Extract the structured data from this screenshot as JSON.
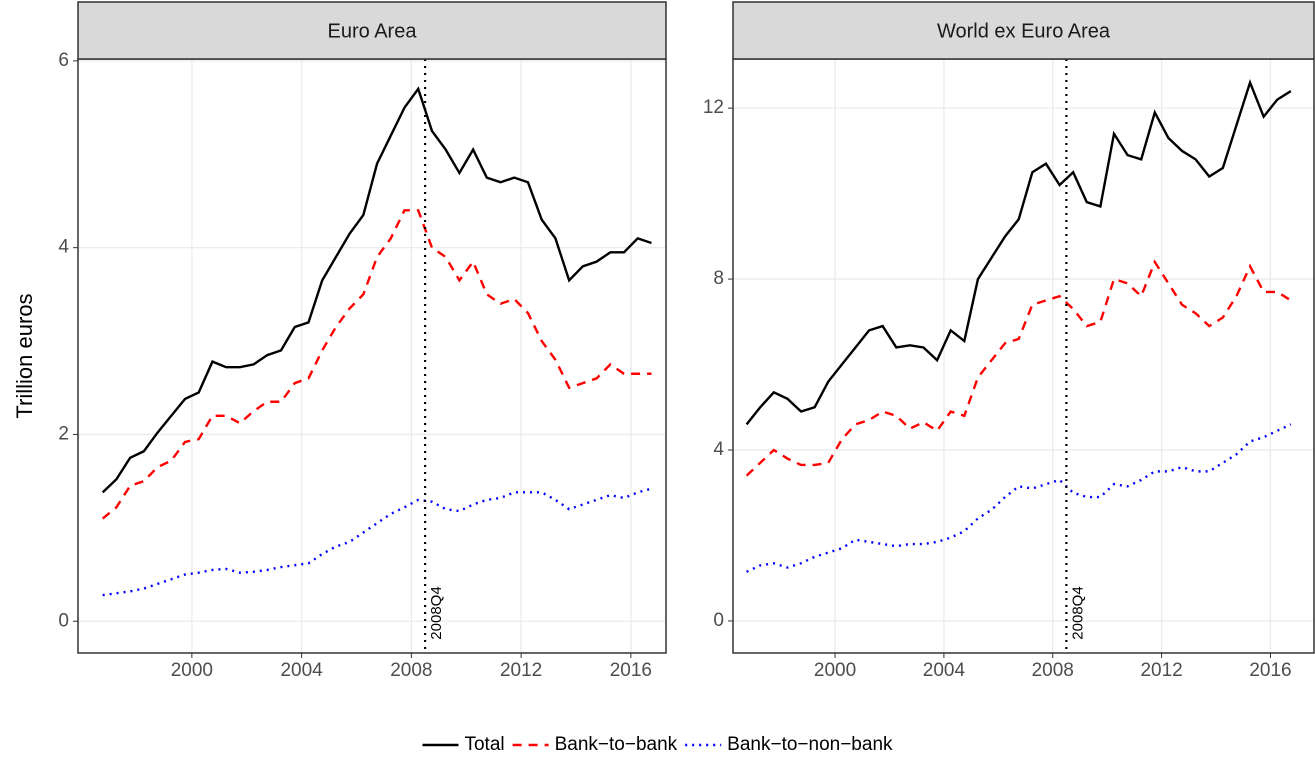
{
  "chart_data": [
    {
      "type": "line",
      "title": "Euro Area",
      "y_label": "Trillion euros",
      "x": [
        1996.75,
        1997.25,
        1997.75,
        1998.25,
        1998.75,
        1999.25,
        1999.75,
        2000.25,
        2000.75,
        2001.25,
        2001.75,
        2002.25,
        2002.75,
        2003.25,
        2003.75,
        2004.25,
        2004.75,
        2005.25,
        2005.75,
        2006.25,
        2006.75,
        2007.25,
        2007.75,
        2008.25,
        2008.75,
        2009.25,
        2009.75,
        2010.25,
        2010.75,
        2011.25,
        2011.75,
        2012.25,
        2012.75,
        2013.25,
        2013.75,
        2014.25,
        2014.75,
        2015.25,
        2015.75,
        2016.25,
        2016.75
      ],
      "xlim": [
        1995.85,
        2017.28
      ],
      "xticks": [
        2000,
        2004,
        2008,
        2012,
        2016
      ],
      "ylim": [
        -0.34,
        6.02
      ],
      "yticks": [
        0,
        2,
        4,
        6
      ],
      "grid": true,
      "vline": {
        "x": 2008.5,
        "label": "2008Q4"
      },
      "series": [
        {
          "name": "Total",
          "color": "#000000",
          "dash": "solid",
          "values": [
            1.38,
            1.52,
            1.75,
            1.82,
            2.02,
            2.2,
            2.38,
            2.45,
            2.78,
            2.72,
            2.72,
            2.75,
            2.85,
            2.9,
            3.15,
            3.2,
            3.65,
            3.9,
            4.15,
            4.35,
            4.9,
            5.2,
            5.5,
            5.7,
            5.25,
            5.05,
            4.8,
            5.05,
            4.75,
            4.7,
            4.75,
            4.7,
            4.3,
            4.1,
            3.65,
            3.8,
            3.85,
            3.95,
            3.95,
            4.1,
            4.05
          ]
        },
        {
          "name": "Bank−to−bank",
          "color": "#ff0000",
          "dash": "dashed",
          "values": [
            1.1,
            1.22,
            1.45,
            1.5,
            1.65,
            1.72,
            1.92,
            1.95,
            2.2,
            2.2,
            2.12,
            2.25,
            2.35,
            2.35,
            2.55,
            2.6,
            2.9,
            3.15,
            3.35,
            3.5,
            3.9,
            4.1,
            4.4,
            4.4,
            4.0,
            3.9,
            3.65,
            3.85,
            3.5,
            3.4,
            3.45,
            3.3,
            3.0,
            2.8,
            2.5,
            2.55,
            2.6,
            2.75,
            2.65,
            2.65,
            2.65
          ]
        },
        {
          "name": "Bank−to−non−bank",
          "color": "#0000ff",
          "dash": "dotted",
          "values": [
            0.28,
            0.3,
            0.32,
            0.35,
            0.4,
            0.45,
            0.5,
            0.52,
            0.55,
            0.56,
            0.52,
            0.53,
            0.55,
            0.58,
            0.6,
            0.62,
            0.72,
            0.8,
            0.85,
            0.95,
            1.05,
            1.15,
            1.22,
            1.3,
            1.28,
            1.2,
            1.18,
            1.25,
            1.3,
            1.32,
            1.38,
            1.38,
            1.38,
            1.3,
            1.2,
            1.25,
            1.3,
            1.35,
            1.32,
            1.38,
            1.42
          ]
        }
      ]
    },
    {
      "type": "line",
      "title": "World ex Euro Area",
      "x": [
        1996.75,
        1997.25,
        1997.75,
        1998.25,
        1998.75,
        1999.25,
        1999.75,
        2000.25,
        2000.75,
        2001.25,
        2001.75,
        2002.25,
        2002.75,
        2003.25,
        2003.75,
        2004.25,
        2004.75,
        2005.25,
        2005.75,
        2006.25,
        2006.75,
        2007.25,
        2007.75,
        2008.25,
        2008.75,
        2009.25,
        2009.75,
        2010.25,
        2010.75,
        2011.25,
        2011.75,
        2012.25,
        2012.75,
        2013.25,
        2013.75,
        2014.25,
        2014.75,
        2015.25,
        2015.75,
        2016.25,
        2016.75
      ],
      "xlim": [
        1996.25,
        2017.6
      ],
      "xticks": [
        2000,
        2004,
        2008,
        2012,
        2016
      ],
      "ylim": [
        -0.75,
        13.15
      ],
      "yticks": [
        0,
        4,
        8,
        12
      ],
      "grid": true,
      "vline": {
        "x": 2008.5,
        "label": "2008Q4"
      },
      "series": [
        {
          "color": "#000000",
          "dash": "solid",
          "values": [
            4.6,
            5.0,
            5.35,
            5.2,
            4.9,
            5.0,
            5.6,
            6.0,
            6.4,
            6.8,
            6.9,
            6.4,
            6.45,
            6.4,
            6.1,
            6.8,
            6.55,
            8.0,
            8.5,
            9.0,
            9.4,
            10.5,
            10.7,
            10.2,
            10.5,
            9.8,
            9.7,
            11.4,
            10.9,
            10.8,
            11.9,
            11.3,
            11.0,
            10.8,
            10.4,
            10.6,
            11.6,
            12.6,
            11.8,
            12.2,
            12.4
          ]
        },
        {
          "color": "#ff0000",
          "dash": "dashed",
          "values": [
            3.4,
            3.7,
            4.0,
            3.8,
            3.65,
            3.65,
            3.7,
            4.25,
            4.6,
            4.7,
            4.9,
            4.8,
            4.5,
            4.65,
            4.45,
            4.9,
            4.8,
            5.7,
            6.1,
            6.5,
            6.6,
            7.4,
            7.5,
            7.6,
            7.3,
            6.9,
            7.0,
            8.0,
            7.9,
            7.6,
            8.4,
            7.9,
            7.4,
            7.2,
            6.9,
            7.1,
            7.6,
            8.3,
            7.7,
            7.7,
            7.5
          ]
        },
        {
          "color": "#0000ff",
          "dash": "dotted",
          "values": [
            1.15,
            1.3,
            1.35,
            1.25,
            1.35,
            1.5,
            1.6,
            1.7,
            1.9,
            1.85,
            1.8,
            1.75,
            1.8,
            1.8,
            1.85,
            1.95,
            2.1,
            2.4,
            2.6,
            2.9,
            3.15,
            3.1,
            3.2,
            3.3,
            3.0,
            2.9,
            2.9,
            3.2,
            3.15,
            3.3,
            3.5,
            3.5,
            3.6,
            3.5,
            3.5,
            3.7,
            3.9,
            4.2,
            4.3,
            4.45,
            4.6
          ]
        }
      ]
    }
  ]
}
